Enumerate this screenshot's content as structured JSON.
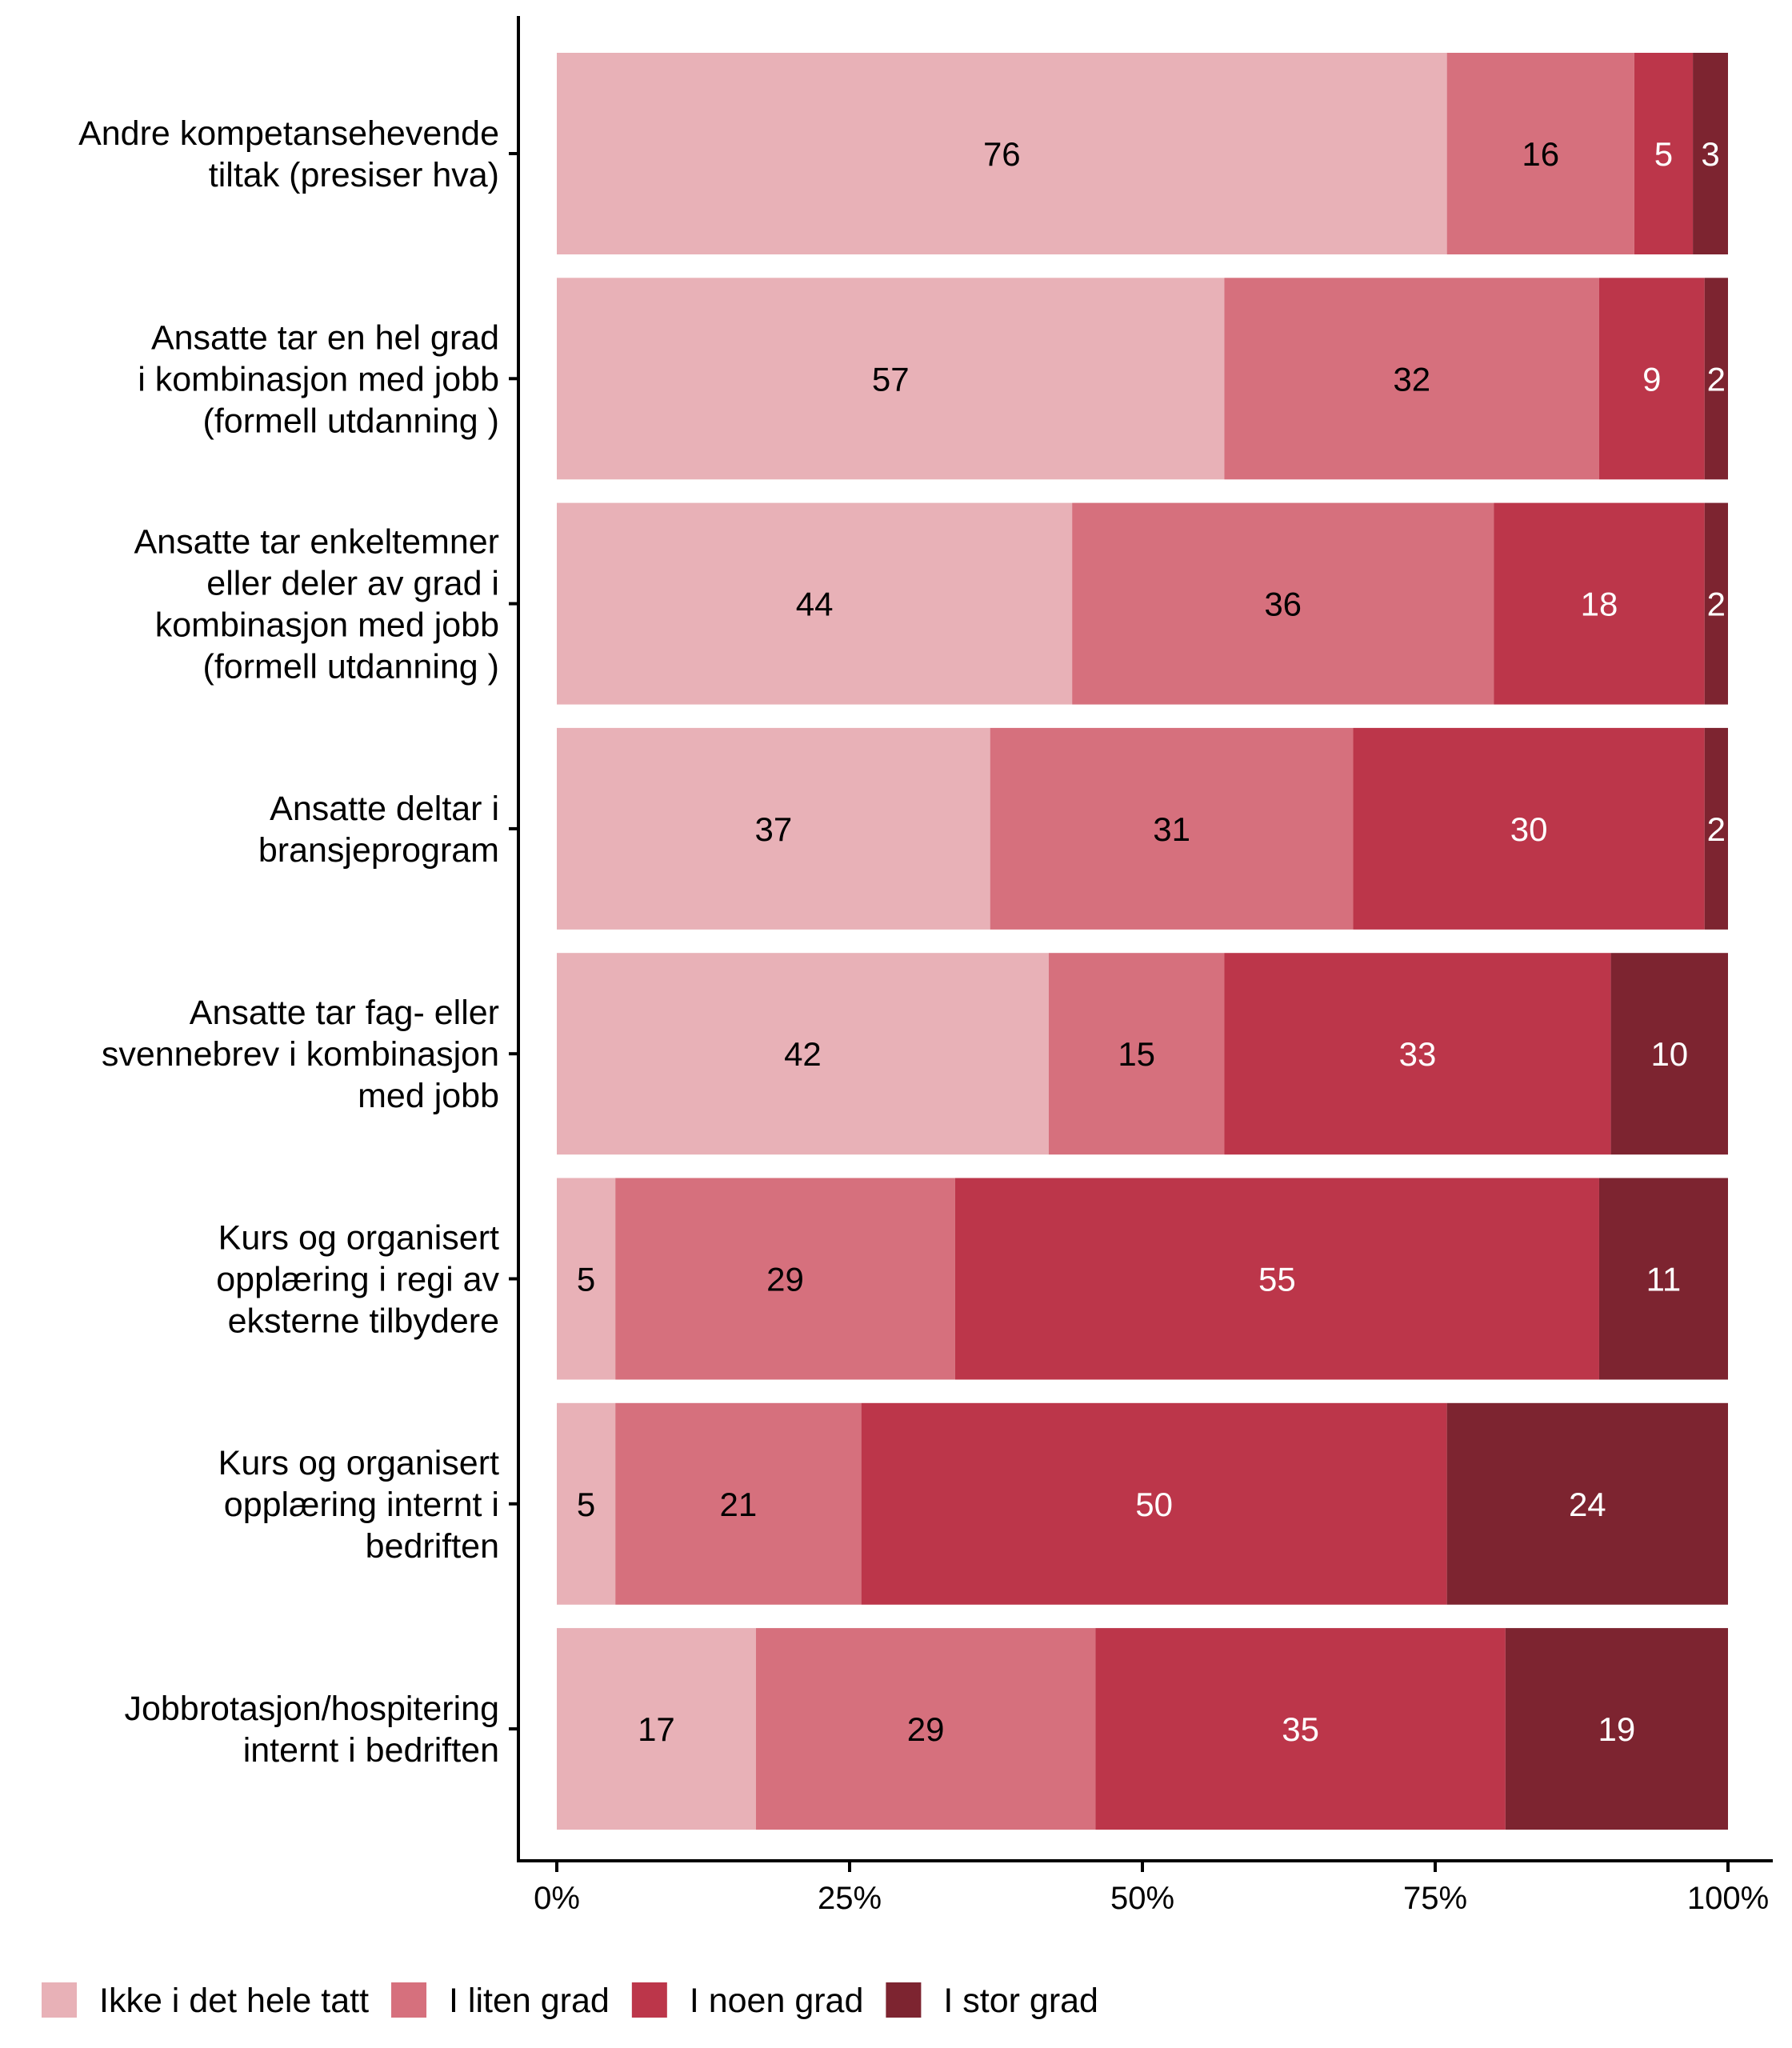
{
  "chart_data": {
    "type": "bar",
    "orientation": "horizontal",
    "stacked": true,
    "normalized": true,
    "title": "",
    "xlabel": "",
    "ylabel": "",
    "xlim": [
      0,
      100
    ],
    "x_ticks": [
      "0%",
      "25%",
      "50%",
      "75%",
      "100%"
    ],
    "grid": false,
    "legend_position": "bottom",
    "categories": [
      [
        "Andre kompetansehevende",
        "tiltak (presiser hva)"
      ],
      [
        "Ansatte tar en hel grad",
        "i kombinasjon med jobb",
        "(formell utdanning )"
      ],
      [
        "Ansatte tar enkeltemner",
        "eller deler av grad i",
        "kombinasjon med jobb",
        "(formell utdanning )"
      ],
      [
        "Ansatte deltar i",
        "bransjeprogram"
      ],
      [
        "Ansatte tar fag- eller",
        "svennebrev i kombinasjon",
        "med jobb"
      ],
      [
        "Kurs og organisert",
        "opplæring i regi av",
        "eksterne tilbydere"
      ],
      [
        "Kurs og organisert",
        "opplæring internt i",
        "bedriften"
      ],
      [
        "Jobbrotasjon/hospitering",
        "internt i bedriften"
      ]
    ],
    "series": [
      {
        "name": "Ikke i det hele tatt",
        "color": "#E8B1B7",
        "label_color": "#000000",
        "values": [
          76,
          57,
          44,
          37,
          42,
          5,
          5,
          17
        ]
      },
      {
        "name": "I liten grad",
        "color": "#D6707D",
        "label_color": "#000000",
        "values": [
          16,
          32,
          36,
          31,
          15,
          29,
          21,
          29
        ]
      },
      {
        "name": "I noen grad",
        "color": "#BC364A",
        "label_color": "#FFFFFF",
        "values": [
          5,
          9,
          18,
          30,
          33,
          55,
          50,
          35
        ]
      },
      {
        "name": "I stor grad",
        "color": "#7D2430",
        "label_color": "#FFFFFF",
        "values": [
          3,
          2,
          2,
          2,
          10,
          11,
          24,
          19
        ]
      }
    ]
  }
}
